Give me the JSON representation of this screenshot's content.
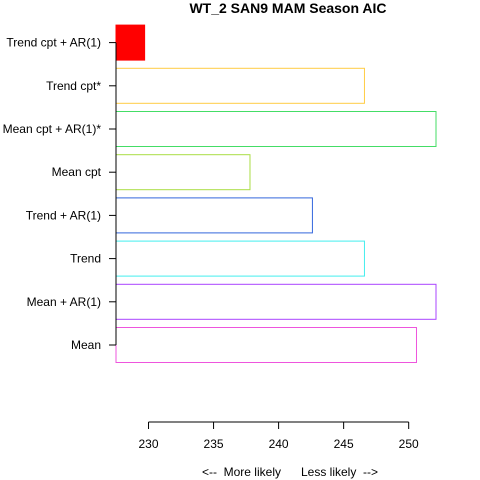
{
  "chart_data": {
    "type": "bar",
    "orientation": "horizontal",
    "title": "WT_2 SAN9 MAM Season AIC",
    "xlabel": "<--  More likely      Less likely  -->",
    "ylabel": "",
    "categories": [
      "Mean",
      "Mean + AR(1)",
      "Trend",
      "Trend + AR(1)",
      "Mean cpt",
      "Mean cpt + AR(1)*",
      "Trend cpt*",
      "Trend cpt + AR(1)"
    ],
    "values": [
      250.6,
      252.1,
      246.6,
      242.6,
      237.8,
      252.1,
      246.6,
      229.7
    ],
    "bar_colors": [
      "#ee55dd",
      "#aa44ff",
      "#44eeee",
      "#3366dd",
      "#aadd44",
      "#44dd66",
      "#ffcc44",
      "#ff0000"
    ],
    "filled": [
      false,
      false,
      false,
      false,
      false,
      false,
      false,
      true
    ],
    "xlim": [
      227.5,
      252.1
    ],
    "x_ticks": [
      230,
      235,
      240,
      245,
      250
    ],
    "grid": false,
    "legend": "none"
  }
}
